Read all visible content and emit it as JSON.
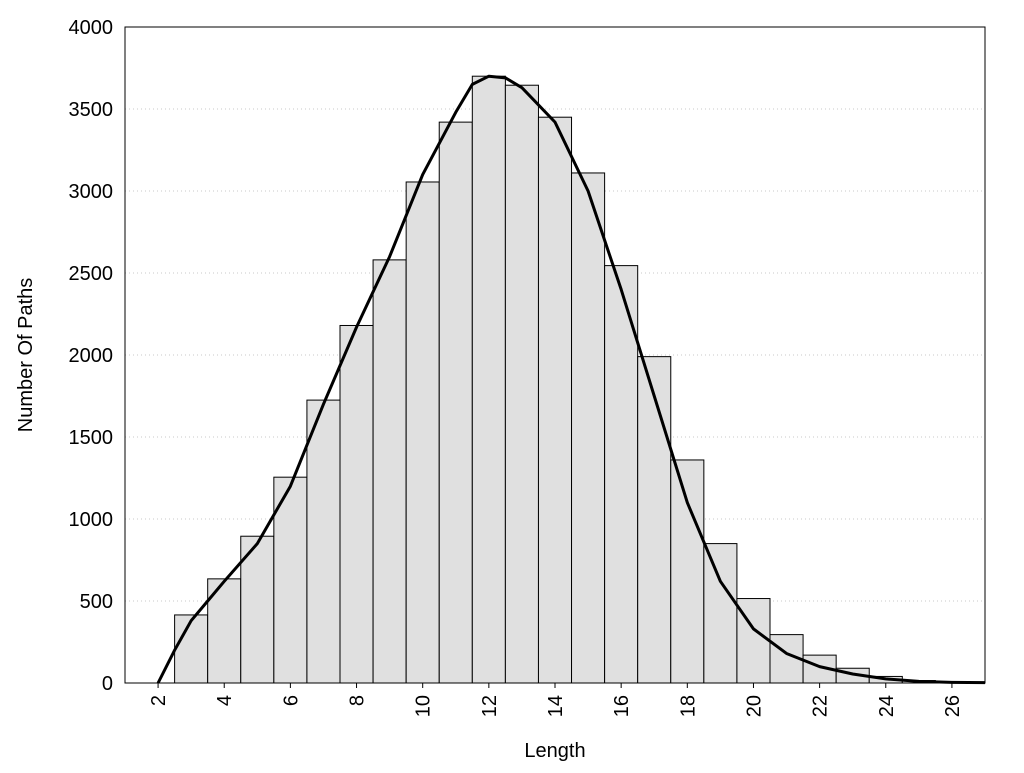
{
  "chart_data": {
    "type": "histogram",
    "xlabel": "Length",
    "ylabel": "Number Of Paths",
    "bins": [
      2.5,
      3.5,
      4.5,
      5.5,
      6.5,
      7.5,
      8.5,
      9.5,
      10.5,
      11.5,
      12.5,
      13.5,
      14.5,
      15.5,
      16.5,
      17.5,
      18.5,
      19.5,
      20.5,
      21.5,
      22.5,
      23.5,
      24.5,
      25.5,
      26.5
    ],
    "counts": [
      415,
      635,
      895,
      1255,
      1725,
      2180,
      2580,
      3055,
      3420,
      3700,
      3645,
      3450,
      3110,
      2545,
      1990,
      1360,
      850,
      515,
      295,
      170,
      90,
      40,
      15,
      5
    ],
    "color": "#e0e0e0",
    "line": {
      "x": [
        2,
        2.5,
        3,
        3.5,
        4,
        5,
        6,
        7,
        8,
        9,
        10,
        11,
        11.5,
        12,
        12.5,
        13,
        14,
        15,
        16,
        17,
        18,
        19,
        20,
        21,
        22,
        23,
        24,
        25,
        26,
        27
      ],
      "values": [
        0,
        200,
        380,
        500,
        620,
        850,
        1200,
        1700,
        2170,
        2600,
        3100,
        3480,
        3650,
        3700,
        3690,
        3630,
        3420,
        3000,
        2400,
        1750,
        1100,
        620,
        330,
        180,
        100,
        55,
        25,
        10,
        4,
        2
      ],
      "color": "#000000"
    },
    "xlim": [
      1,
      27
    ],
    "ylim": [
      0,
      4000
    ],
    "xticks": [
      2,
      4,
      6,
      8,
      10,
      12,
      14,
      16,
      18,
      20,
      22,
      24,
      26
    ],
    "yticks": [
      0,
      500,
      1000,
      1500,
      2000,
      2500,
      3000,
      3500,
      4000
    ],
    "grid": true
  }
}
